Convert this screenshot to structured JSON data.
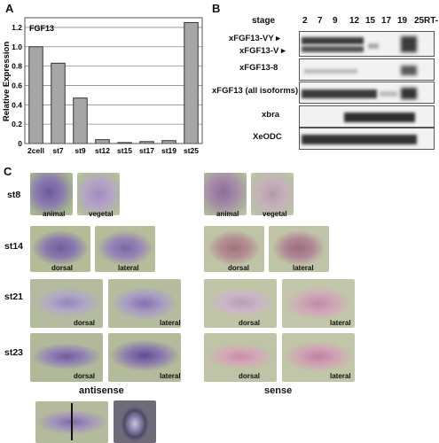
{
  "panels": {
    "a": "A",
    "b": "B",
    "c": "C"
  },
  "chart_data": {
    "type": "bar",
    "title": "FGF13",
    "ylabel": "Relative Expression",
    "xlabel": "",
    "categories": [
      "2cell",
      "st7",
      "st9",
      "st12",
      "st15",
      "st17",
      "st19",
      "st25"
    ],
    "values": [
      1.0,
      0.83,
      0.47,
      0.04,
      0.01,
      0.02,
      0.03,
      1.25
    ],
    "ylim": [
      0,
      1.3
    ],
    "yticks": [
      "0",
      "0.2",
      "0.4",
      "0.6",
      "0.8",
      "1.0",
      "1.2"
    ],
    "grid": true,
    "bar_color": "#a6a6a6"
  },
  "blot": {
    "stage_title": "stage",
    "stages": [
      "2",
      "7",
      "9",
      "12",
      "15",
      "17",
      "19",
      "25",
      "RT-"
    ],
    "rows": [
      {
        "label": "xFGF13-VY",
        "arrow": "▸"
      },
      {
        "label": "xFGF13-V",
        "arrow": "▸"
      },
      {
        "label": "xFGF13-8"
      },
      {
        "label": "xFGF13 (all isoforms)"
      },
      {
        "label": "xbra"
      },
      {
        "label": "XeODC"
      }
    ]
  },
  "in_situ": {
    "rows": [
      "st8",
      "st14",
      "st21",
      "st23"
    ],
    "view_labels": {
      "animal": "animal",
      "vegetal": "vegetal",
      "dorsal": "dorsal",
      "lateral": "lateral"
    },
    "groups": {
      "antisense": "antisense",
      "sense": "sense"
    }
  }
}
